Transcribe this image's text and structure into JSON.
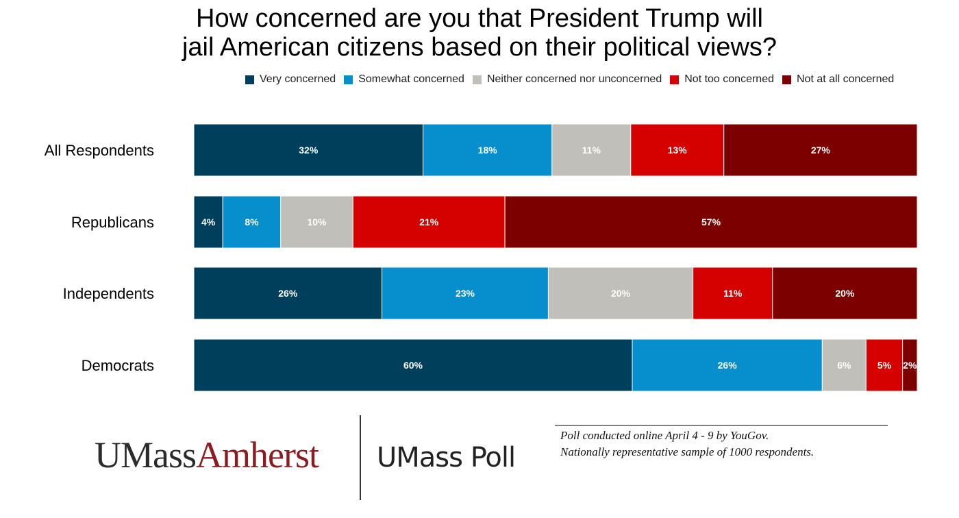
{
  "title_lines": [
    "How concerned are you that President Trump will",
    "jail American citizens based on their political views?"
  ],
  "legend": [
    {
      "label": "Very concerned",
      "color": "#003f5c"
    },
    {
      "label": "Somewhat concerned",
      "color": "#068fcc"
    },
    {
      "label": "Neither concerned nor unconcerned",
      "color": "#c0bfba"
    },
    {
      "label": "Not too concerned",
      "color": "#d50000"
    },
    {
      "label": "Not at all concerned",
      "color": "#7d0000"
    }
  ],
  "chart_data": {
    "type": "bar",
    "orientation": "horizontal",
    "stacked": true,
    "categories": [
      "All Respondents",
      "Republicans",
      "Independents",
      "Democrats"
    ],
    "series": [
      {
        "name": "Very concerned",
        "color": "#003f5c",
        "values": [
          32,
          4,
          26,
          60
        ]
      },
      {
        "name": "Somewhat concerned",
        "color": "#068fcc",
        "values": [
          18,
          8,
          23,
          26
        ]
      },
      {
        "name": "Neither concerned nor unconcerned",
        "color": "#c0bfba",
        "values": [
          11,
          10,
          20,
          6
        ]
      },
      {
        "name": "Not too concerned",
        "color": "#d50000",
        "values": [
          13,
          21,
          11,
          5
        ]
      },
      {
        "name": "Not at all concerned",
        "color": "#7d0000",
        "values": [
          27,
          57,
          20,
          2
        ]
      }
    ],
    "value_suffix": "%",
    "legend_position": "top",
    "grid": false
  },
  "branding": {
    "logo_part1": "UMass",
    "logo_part2": "Amherst",
    "poll_name": "UMass Poll"
  },
  "footnote": {
    "line1": "Poll conducted online April 4 - 9 by YouGov.",
    "line2": "Nationally representative sample of 1000 respondents."
  }
}
